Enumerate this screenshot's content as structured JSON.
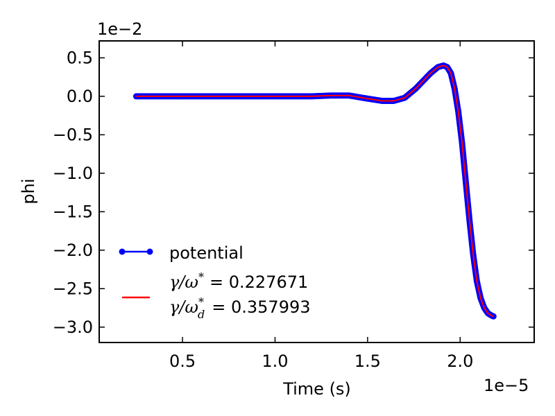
{
  "chart_data": {
    "type": "line",
    "xlabel": "Time (s)",
    "ylabel": "phi",
    "x_offset_text": "1e−5",
    "y_offset_text": "1e−2",
    "x_scale": 1e-05,
    "y_scale": 0.01,
    "xlim": [
      0.05,
      2.4
    ],
    "ylim": [
      -3.2,
      0.72
    ],
    "xticks": [
      0.5,
      1.0,
      1.5,
      2.0
    ],
    "xtick_labels": [
      "0.5",
      "1.0",
      "1.5",
      "2.0"
    ],
    "yticks": [
      0.5,
      0.0,
      -0.5,
      -1.0,
      -1.5,
      -2.0,
      -2.5,
      -3.0
    ],
    "ytick_labels": [
      "0.5",
      "0.0",
      "−0.5",
      "−1.0",
      "−1.5",
      "−2.0",
      "−2.5",
      "−3.0"
    ],
    "legend_position": "lower-left",
    "series": [
      {
        "name": "potential",
        "color": "#0000ff",
        "marker": "circle",
        "x": [
          0.25,
          0.4,
          0.6,
          0.8,
          1.0,
          1.2,
          1.3,
          1.4,
          1.5,
          1.58,
          1.64,
          1.7,
          1.76,
          1.8,
          1.84,
          1.88,
          1.91,
          1.93,
          1.95,
          1.97,
          1.99,
          2.01,
          2.03,
          2.05,
          2.07,
          2.09,
          2.11,
          2.13,
          2.15,
          2.17,
          2.18
        ],
        "y": [
          0.0,
          0.0,
          0.0,
          0.0,
          0.0,
          0.0,
          0.01,
          0.01,
          -0.03,
          -0.06,
          -0.06,
          -0.02,
          0.1,
          0.2,
          0.3,
          0.38,
          0.4,
          0.38,
          0.3,
          0.1,
          -0.2,
          -0.6,
          -1.1,
          -1.6,
          -2.05,
          -2.4,
          -2.62,
          -2.75,
          -2.82,
          -2.85,
          -2.86
        ]
      }
    ],
    "fit": {
      "color": "#ff0000",
      "gamma_omega_star_label": "= 0.227671",
      "gamma_omega_d_star_label": "= 0.357993"
    }
  }
}
